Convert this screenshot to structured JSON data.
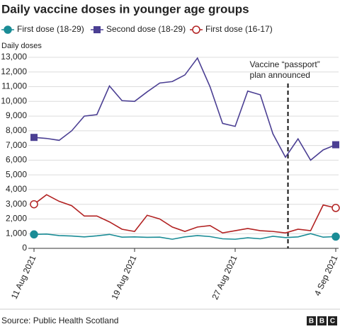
{
  "chart_data": {
    "type": "line",
    "title": "Daily vaccine doses in younger age groups",
    "y_label": "Daily doses",
    "source": "Source: Public Health Scotland",
    "logo": "BBC",
    "annotation": "Vaccine “passport” plan announced",
    "categories": [
      "11 Aug 2021",
      null,
      null,
      null,
      null,
      null,
      null,
      null,
      "19 Aug 2021",
      null,
      null,
      null,
      null,
      null,
      null,
      null,
      "27 Aug 2021",
      null,
      null,
      null,
      null,
      null,
      null,
      null,
      "4 Sep 2021"
    ],
    "series": [
      {
        "name": "First dose (18-29)",
        "color": "#1a8c96",
        "marker": "circle-filled",
        "values": [
          950,
          970,
          870,
          840,
          780,
          850,
          950,
          760,
          780,
          750,
          760,
          620,
          780,
          870,
          800,
          650,
          620,
          720,
          650,
          820,
          730,
          780,
          1000,
          760,
          800
        ]
      },
      {
        "name": "Second dose (18-29)",
        "color": "#4b3f93",
        "marker": "square",
        "values": [
          7550,
          7480,
          7350,
          8000,
          9000,
          9100,
          11050,
          10050,
          10000,
          10650,
          11250,
          11350,
          11800,
          12950,
          11000,
          8500,
          8300,
          10700,
          10450,
          7800,
          6200,
          7450,
          6000,
          6700,
          7050
        ]
      },
      {
        "name": "First dose (16-17)",
        "color": "#b22222",
        "marker": "circle-open",
        "values": [
          3000,
          3650,
          3200,
          2900,
          2200,
          2200,
          1800,
          1300,
          1150,
          2250,
          2000,
          1450,
          1150,
          1450,
          1550,
          1050,
          1200,
          1350,
          1200,
          1150,
          1050,
          1300,
          1200,
          2950,
          2750
        ]
      }
    ],
    "ylim": [
      0,
      13000
    ],
    "yticks": [
      0,
      {
        "value": 1000,
        "label": "1,000"
      },
      {
        "value": 2000,
        "label": "2,000"
      },
      {
        "value": 3000,
        "label": "3,000"
      },
      {
        "value": 4000,
        "label": "4,000"
      },
      {
        "value": 5000,
        "label": "5,000"
      },
      {
        "value": 6000,
        "label": "6,000"
      },
      {
        "value": 7000,
        "label": "7,000"
      },
      {
        "value": 8000,
        "label": "8,000"
      },
      {
        "value": 9000,
        "label": "9,000"
      },
      {
        "value": 10000,
        "label": "10,000"
      },
      {
        "value": 11000,
        "label": "11,000"
      },
      {
        "value": 12000,
        "label": "12,000"
      },
      {
        "value": 13000,
        "label": "13,000"
      }
    ],
    "grid": true
  }
}
